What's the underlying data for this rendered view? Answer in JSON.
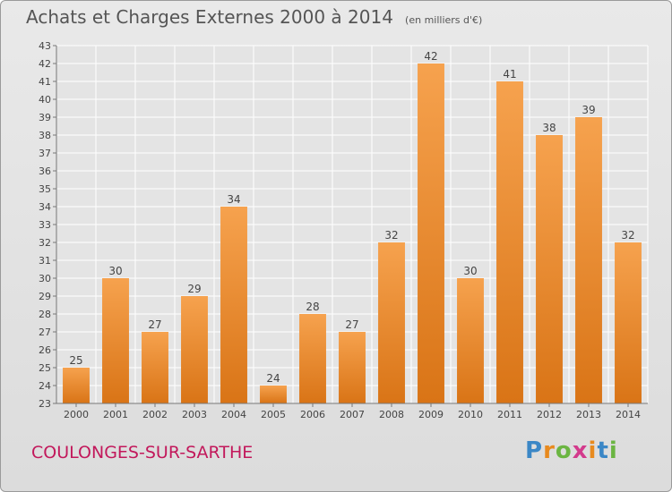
{
  "title": "Achats et Charges Externes 2000 à 2014",
  "unit": "(en milliers d'€)",
  "place": "COULONGES-SUR-SARTHE",
  "logo": "Proxiti",
  "colors": {
    "bar_light": "#f6a24e",
    "bar_dark": "#d97416",
    "label": "#444444",
    "place": "#c2185b"
  },
  "chart_data": {
    "type": "bar",
    "title": "Achats et Charges Externes 2000 à 2014",
    "subtitle": "(en milliers d'€)",
    "categories": [
      "2000",
      "2001",
      "2002",
      "2003",
      "2004",
      "2005",
      "2006",
      "2007",
      "2008",
      "2009",
      "2010",
      "2011",
      "2012",
      "2013",
      "2014"
    ],
    "values": [
      25,
      30,
      27,
      29,
      34,
      24,
      28,
      27,
      32,
      42,
      30,
      41,
      38,
      39,
      32
    ],
    "ylim": [
      23,
      43
    ],
    "yticks": [
      23,
      24,
      25,
      26,
      27,
      28,
      29,
      30,
      31,
      32,
      33,
      34,
      35,
      36,
      37,
      38,
      39,
      40,
      41,
      42,
      43
    ],
    "grid": true,
    "legend": "none"
  }
}
